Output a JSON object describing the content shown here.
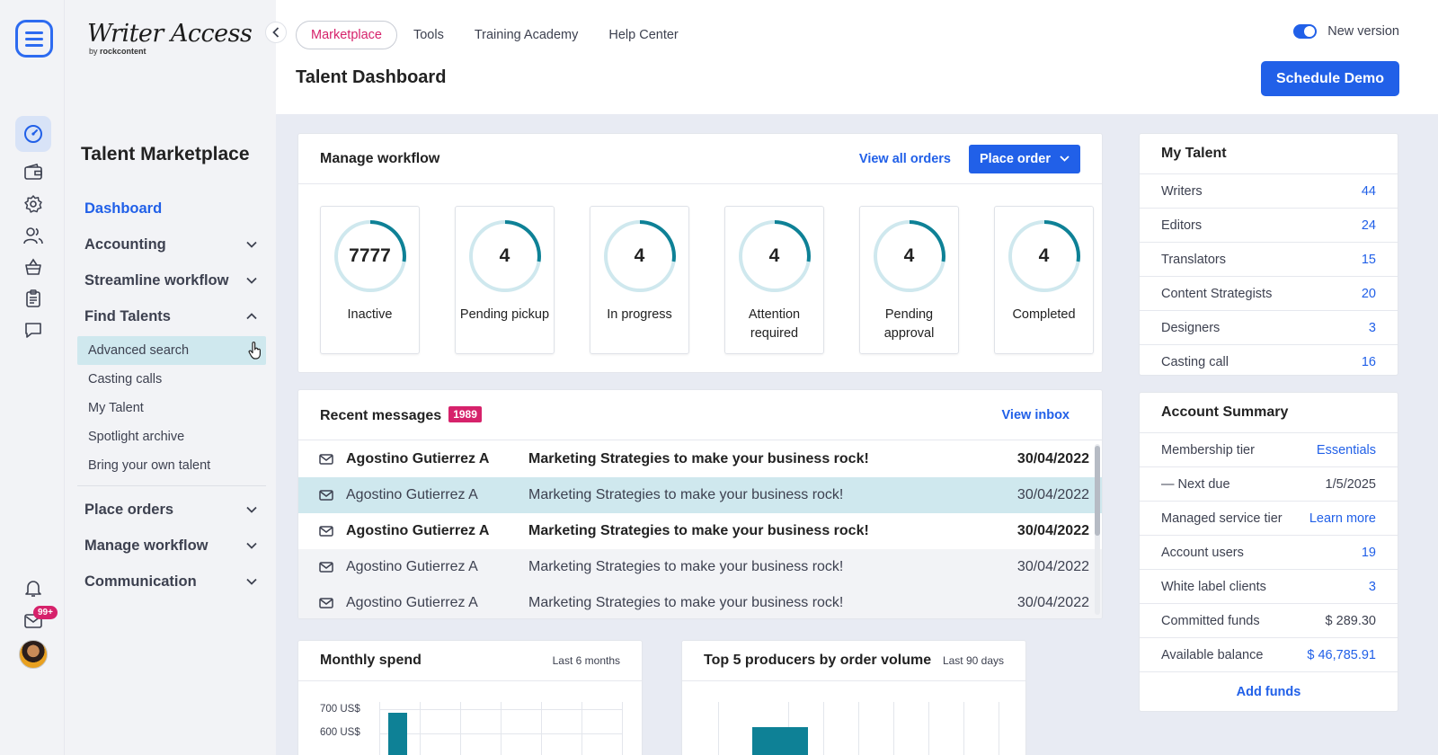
{
  "rail": {
    "icons": [
      "menu-logo-icon",
      "dashboard-gauge-icon",
      "wallet-icon",
      "settings-gear-icon",
      "users-icon",
      "shopping-basket-icon",
      "clipboard-icon",
      "chat-bubble-icon",
      "bell-icon",
      "mail-icon"
    ],
    "mail_badge": "99+"
  },
  "brand": {
    "name": "Writer Access",
    "sub_prefix": "by ",
    "sub_brand": "rockcontent"
  },
  "sidebar": {
    "heading": "Talent Marketplace",
    "dashboard": "Dashboard",
    "accounting": "Accounting",
    "streamline": "Streamline workflow",
    "find_talents": "Find Talents",
    "find_talents_items": [
      "Advanced search",
      "Casting calls",
      "My Talent",
      "Spotlight archive",
      "Bring your own talent"
    ],
    "place_orders": "Place orders",
    "manage_workflow": "Manage workflow",
    "communication": "Communication"
  },
  "topnav": {
    "tabs": [
      "Marketplace",
      "Tools",
      "Training Academy",
      "Help Center"
    ],
    "active_tab": "Marketplace",
    "toggle_label": "New version",
    "toggle_on": true
  },
  "page": {
    "title": "Talent Dashboard",
    "demo_button": "Schedule Demo"
  },
  "workflow": {
    "title": "Manage workflow",
    "view_all": "View all orders",
    "place_order": "Place order",
    "stats": [
      {
        "value": "7777",
        "label": "Inactive"
      },
      {
        "value": "4",
        "label": "Pending pickup"
      },
      {
        "value": "4",
        "label": "In progress"
      },
      {
        "value": "4",
        "label": "Attention required"
      },
      {
        "value": "4",
        "label": "Pending approval"
      },
      {
        "value": "4",
        "label": "Completed"
      }
    ]
  },
  "messages": {
    "title": "Recent messages",
    "count": "1989",
    "view_inbox": "View inbox",
    "rows": [
      {
        "from": "Agostino Gutierrez A",
        "subject": "Marketing Strategies to make your business rock!",
        "date": "30/04/2022",
        "unread": true
      },
      {
        "from": "Agostino Gutierrez A",
        "subject": "Marketing Strategies to make your business rock!",
        "date": "30/04/2022",
        "unread": false
      },
      {
        "from": "Agostino Gutierrez A",
        "subject": "Marketing Strategies to make your business rock!",
        "date": "30/04/2022",
        "unread": true
      },
      {
        "from": "Agostino Gutierrez A",
        "subject": "Marketing Strategies to make your business rock!",
        "date": "30/04/2022",
        "unread": false
      },
      {
        "from": "Agostino Gutierrez A",
        "subject": "Marketing Strategies to make your business rock!",
        "date": "30/04/2022",
        "unread": false
      }
    ]
  },
  "my_talent": {
    "title": "My Talent",
    "rows": [
      {
        "label": "Writers",
        "value": "44"
      },
      {
        "label": "Editors",
        "value": "24"
      },
      {
        "label": "Translators",
        "value": "15"
      },
      {
        "label": "Content Strategists",
        "value": "20"
      },
      {
        "label": "Designers",
        "value": "3"
      },
      {
        "label": "Casting call",
        "value": "16"
      }
    ]
  },
  "account_summary": {
    "title": "Account Summary",
    "rows": [
      {
        "label": "Membership tier",
        "value": "Essentials"
      },
      {
        "label": "— Next due",
        "value": "1/5/2025"
      },
      {
        "label": "Managed service tier",
        "value": "Learn more"
      },
      {
        "label": "Account users",
        "value": "19"
      },
      {
        "label": "White label clients",
        "value": "3"
      },
      {
        "label": "Committed funds",
        "value": "$ 289.30"
      },
      {
        "label": "Available balance",
        "value": "$ 46,785.91"
      }
    ],
    "add_funds": "Add funds"
  },
  "monthly_spend": {
    "title": "Monthly spend",
    "period": "Last 6 months",
    "y_ticks": [
      "700 US$",
      "600 US$"
    ]
  },
  "top_producers": {
    "title": "Top 5 producers by order volume",
    "period": "Last 90 days"
  },
  "colors": {
    "primary": "#2160e8",
    "accent": "#d6226b",
    "teal": "#0e8196",
    "highlight": "#cfe8ee"
  }
}
